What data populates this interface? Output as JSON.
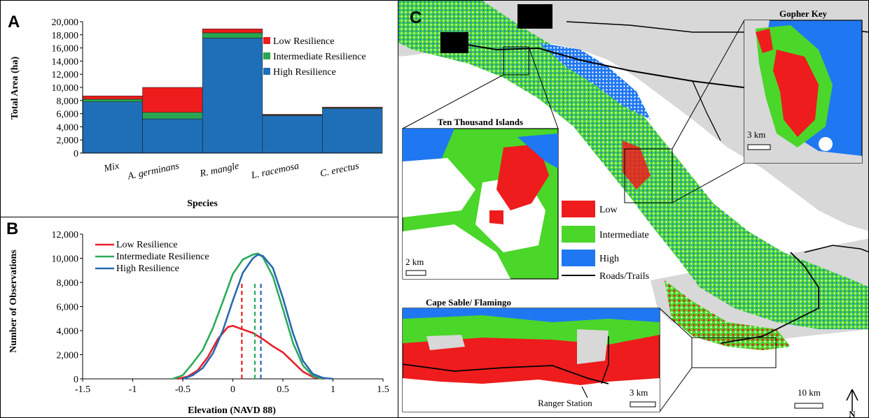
{
  "chart_data": [
    {
      "panel": "A",
      "type": "bar",
      "stacked": true,
      "categories": [
        "Mix",
        "A. germinans",
        "R. mangle",
        "L. racemosa",
        "C. erectus"
      ],
      "series": [
        {
          "name": "High Resilience",
          "color": "#1f6fb8",
          "values": [
            7800,
            5200,
            17500,
            5700,
            6800
          ]
        },
        {
          "name": "Intermediate Resilience",
          "color": "#2aa652",
          "values": [
            400,
            1000,
            800,
            100,
            100
          ]
        },
        {
          "name": "Low Resilience",
          "color": "#ee1c1c",
          "values": [
            500,
            3800,
            600,
            100,
            100
          ]
        }
      ],
      "legend_order": [
        "Low Resilience",
        "Intermediate Resilience",
        "High Resilience"
      ],
      "xlabel": "Species",
      "ylabel": "Total Area (ha)",
      "ylim": [
        0,
        20000
      ],
      "yticks": [
        "0",
        "2,000",
        "4,000",
        "6,000",
        "8,000",
        "10,000",
        "12,000",
        "14,000",
        "16,000",
        "18,000",
        "20,000"
      ],
      "legend_position": "right"
    },
    {
      "panel": "B",
      "type": "line",
      "xlabel": "Elevation (NAVD 88)",
      "ylabel": "Number  of Observations",
      "xlim": [
        -1.5,
        1.5
      ],
      "ylim": [
        0,
        12000
      ],
      "xticks": [
        "-1.5",
        "-1",
        "-0.5",
        "0",
        "0.5",
        "1",
        "1.5"
      ],
      "yticks": [
        "0",
        "2,000",
        "4,000",
        "6,000",
        "8,000",
        "10,000",
        "12,000"
      ],
      "series": [
        {
          "name": "Low Resilience",
          "color": "#e8202a",
          "mean": 0.09,
          "x": [
            -0.55,
            -0.45,
            -0.35,
            -0.25,
            -0.15,
            -0.05,
            0.0,
            0.1,
            0.2,
            0.3,
            0.4,
            0.5,
            0.6,
            0.7,
            0.8,
            0.9
          ],
          "y": [
            0,
            200,
            700,
            1800,
            3300,
            4300,
            4400,
            4100,
            3800,
            3300,
            2700,
            2200,
            1400,
            600,
            150,
            0
          ]
        },
        {
          "name": "Intermediate Resilience",
          "color": "#2bab5c",
          "mean": 0.22,
          "x": [
            -0.6,
            -0.5,
            -0.4,
            -0.3,
            -0.2,
            -0.1,
            0.0,
            0.1,
            0.2,
            0.25,
            0.3,
            0.4,
            0.5,
            0.6,
            0.7,
            0.8,
            0.9
          ],
          "y": [
            0,
            300,
            1300,
            2400,
            4200,
            6400,
            8700,
            9900,
            10300,
            10400,
            10100,
            8500,
            5800,
            3000,
            1100,
            250,
            0
          ]
        },
        {
          "name": "High Resilience",
          "color": "#2a68b0",
          "mean": 0.28,
          "x": [
            -0.5,
            -0.4,
            -0.3,
            -0.2,
            -0.1,
            0.0,
            0.1,
            0.2,
            0.25,
            0.3,
            0.4,
            0.5,
            0.6,
            0.7,
            0.8,
            0.9,
            1.0
          ],
          "y": [
            0,
            300,
            900,
            2100,
            4000,
            6500,
            8800,
            10000,
            10300,
            10200,
            9200,
            6700,
            3800,
            1500,
            400,
            80,
            0
          ]
        }
      ],
      "legend_position": "top-left"
    }
  ],
  "panels": {
    "a": "A",
    "b": "B",
    "c": "C"
  },
  "map": {
    "insets": {
      "gopher_key": "Gopher Key",
      "ten_thousand": "Ten Thousand Islands",
      "cape_sable": "Cape Sable/ Flamingo"
    },
    "scales": {
      "gopher": "3 km",
      "ten": "2 km",
      "cape": "3 km",
      "main": "10 km"
    },
    "annotation": "Ranger Station",
    "north": "N",
    "legend": [
      {
        "label": "Low",
        "color": "#ee1c1c"
      },
      {
        "label": "Intermediate",
        "color": "#4bd62a"
      },
      {
        "label": "High",
        "color": "#1f77f2"
      },
      {
        "label": "Roads/Trails",
        "color": "#000000"
      }
    ],
    "colors": {
      "land": "#d8d8d8",
      "water": "#ffffff"
    }
  }
}
